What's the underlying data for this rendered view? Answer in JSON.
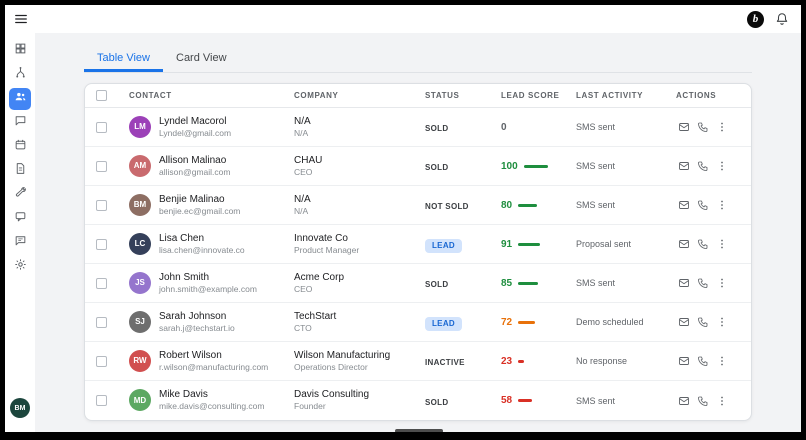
{
  "topbar": {
    "logo_letter": "b"
  },
  "sidebar": {
    "items": [
      {
        "name": "dashboard",
        "active": false
      },
      {
        "name": "workflows",
        "active": false
      },
      {
        "name": "contacts",
        "active": true
      },
      {
        "name": "chat",
        "active": false
      },
      {
        "name": "calendar",
        "active": false
      },
      {
        "name": "documents",
        "active": false
      },
      {
        "name": "tools",
        "active": false
      },
      {
        "name": "conversations",
        "active": false
      },
      {
        "name": "messages",
        "active": false
      },
      {
        "name": "settings",
        "active": false
      }
    ],
    "user_initials": "BM",
    "user_avatar_color": "#1c463d"
  },
  "tabs": [
    {
      "label": "Table View",
      "active": true
    },
    {
      "label": "Card View",
      "active": false
    }
  ],
  "table": {
    "columns": [
      "CONTACT",
      "COMPANY",
      "STATUS",
      "LEAD SCORE",
      "LAST ACTIVITY",
      "ACTIONS"
    ],
    "rows": [
      {
        "initials": "LM",
        "avatar_color": "#9c41b8",
        "name": "Lyndel Macorol",
        "email": "Lyndel@gmail.com",
        "company": "N/A",
        "role": "N/A",
        "status": "SOLD",
        "status_variant": "text",
        "score": 0,
        "score_color": "#5f6368",
        "activity": "SMS sent"
      },
      {
        "initials": "AM",
        "avatar_color": "#c96a6e",
        "name": "Allison Malinao",
        "email": "allison@gmail.com",
        "company": "CHAU",
        "role": "CEO",
        "status": "SOLD",
        "status_variant": "text",
        "score": 100,
        "score_color": "#1e8e3e",
        "activity": "SMS sent"
      },
      {
        "initials": "BM",
        "avatar_color": "#8d6e63",
        "name": "Benjie Malinao",
        "email": "benjie.ec@gmail.com",
        "company": "N/A",
        "role": "N/A",
        "status": "NOT SOLD",
        "status_variant": "text",
        "score": 80,
        "score_color": "#1e8e3e",
        "activity": "SMS sent"
      },
      {
        "initials": "LC",
        "avatar_color": "#35405a",
        "name": "Lisa Chen",
        "email": "lisa.chen@innovate.co",
        "company": "Innovate Co",
        "role": "Product Manager",
        "status": "LEAD",
        "status_variant": "pill",
        "score": 91,
        "score_color": "#1e8e3e",
        "activity": "Proposal sent"
      },
      {
        "initials": "JS",
        "avatar_color": "#9575cd",
        "name": "John Smith",
        "email": "john.smith@example.com",
        "company": "Acme Corp",
        "role": "CEO",
        "status": "SOLD",
        "status_variant": "text",
        "score": 85,
        "score_color": "#1e8e3e",
        "activity": "SMS sent"
      },
      {
        "initials": "SJ",
        "avatar_color": "#6e6e6e",
        "name": "Sarah Johnson",
        "email": "sarah.j@techstart.io",
        "company": "TechStart",
        "role": "CTO",
        "status": "LEAD",
        "status_variant": "pill",
        "score": 72,
        "score_color": "#e8710a",
        "activity": "Demo scheduled"
      },
      {
        "initials": "RW",
        "avatar_color": "#d14f4f",
        "name": "Robert Wilson",
        "email": "r.wilson@manufacturing.com",
        "company": "Wilson Manufacturing",
        "role": "Operations Director",
        "status": "INACTIVE",
        "status_variant": "text",
        "score": 23,
        "score_color": "#d93025",
        "activity": "No response"
      },
      {
        "initials": "MD",
        "avatar_color": "#5ca862",
        "name": "Mike Davis",
        "email": "mike.davis@consulting.com",
        "company": "Davis Consulting",
        "role": "Founder",
        "status": "SOLD",
        "status_variant": "text",
        "score": 58,
        "score_color": "#d93025",
        "activity": "SMS sent"
      }
    ]
  },
  "colors": {
    "accent_blue": "#1a73e8",
    "lead_badge_bg": "#d2e3fc",
    "lead_badge_text": "#1967d2"
  }
}
